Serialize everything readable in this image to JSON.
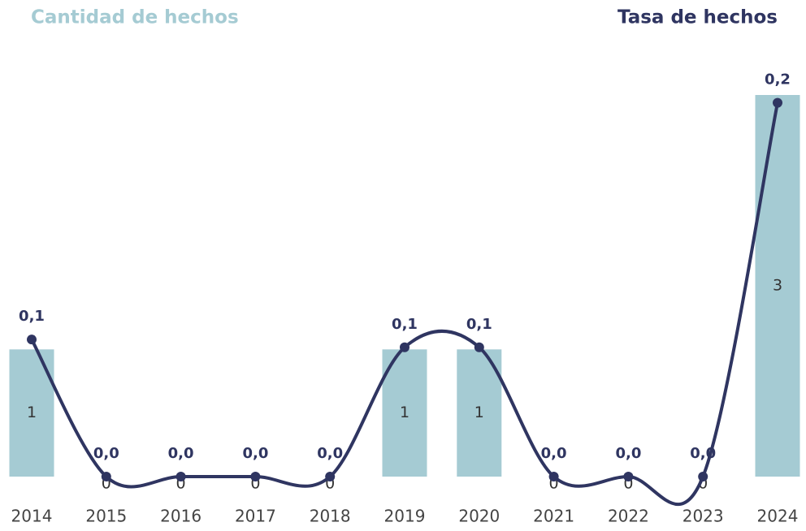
{
  "chart_data": {
    "type": "bar_line",
    "categories": [
      "2014",
      "2015",
      "2016",
      "2017",
      "2018",
      "2019",
      "2020",
      "2021",
      "2022",
      "2023",
      "2024"
    ],
    "series": [
      {
        "name": "Cantidad de hechos",
        "type": "bar",
        "color": "#a5cbd3",
        "values": [
          1,
          0,
          0,
          0,
          0,
          1,
          1,
          0,
          0,
          0,
          3
        ]
      },
      {
        "name": "Tasa de hechos",
        "type": "line",
        "axis": "y2",
        "color": "#2f3561",
        "values": [
          0.088,
          0,
          0,
          0,
          0,
          0.083,
          0.083,
          0,
          0,
          0,
          0.24
        ],
        "value_labels": [
          "0,1",
          "0,0",
          "0,0",
          "0,0",
          "0,0",
          "0,1",
          "0,1",
          "0,0",
          "0,0",
          "0,0",
          "0,2"
        ]
      }
    ],
    "ylim": [
      0,
      3
    ],
    "y2lim": [
      0,
      0.245
    ]
  }
}
